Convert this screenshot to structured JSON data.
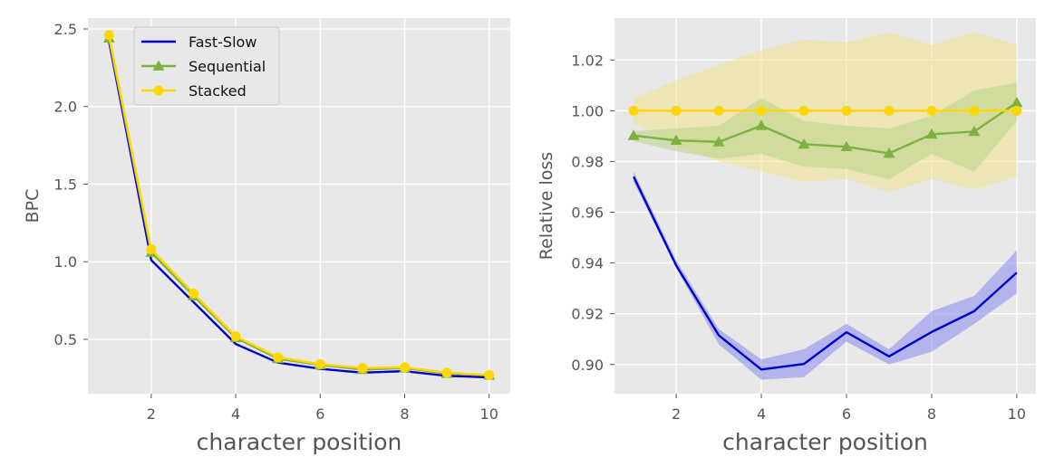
{
  "chart_data": [
    {
      "type": "line",
      "xlabel": "character position",
      "ylabel": "BPC",
      "xlim": [
        0.5,
        10.5
      ],
      "ylim": [
        0.15,
        2.57
      ],
      "xticks": [
        2,
        4,
        6,
        8,
        10
      ],
      "xtick_labels": [
        "2",
        "4",
        "6",
        "8",
        "10"
      ],
      "yticks": [
        0.5,
        1.0,
        1.5,
        2.0,
        2.5
      ],
      "ytick_labels": [
        "0.5",
        "1.0",
        "1.5",
        "2.0",
        "2.5"
      ],
      "grid": true,
      "legend_position": "top-center",
      "x": [
        1,
        2,
        3,
        4,
        5,
        6,
        7,
        8,
        9,
        10
      ],
      "series": [
        {
          "name": "Fast-Slow",
          "color": "#0000cc",
          "marker": "none",
          "values": [
            2.42,
            1.01,
            0.74,
            0.47,
            0.35,
            0.31,
            0.285,
            0.295,
            0.265,
            0.255
          ]
        },
        {
          "name": "Sequential",
          "color": "#7fb13f",
          "marker": "triangle",
          "values": [
            2.44,
            1.06,
            0.78,
            0.51,
            0.375,
            0.335,
            0.305,
            0.315,
            0.28,
            0.268
          ]
        },
        {
          "name": "Stacked",
          "color": "#ffd700",
          "marker": "circle",
          "values": [
            2.46,
            1.08,
            0.795,
            0.52,
            0.385,
            0.34,
            0.315,
            0.32,
            0.285,
            0.27
          ]
        }
      ]
    },
    {
      "type": "line",
      "xlabel": "character position",
      "ylabel": "Relative loss",
      "xlim": [
        0.55,
        10.45
      ],
      "ylim": [
        0.8885,
        1.0365
      ],
      "xticks": [
        2,
        4,
        6,
        8,
        10
      ],
      "xtick_labels": [
        "2",
        "4",
        "6",
        "8",
        "10"
      ],
      "yticks": [
        0.9,
        0.92,
        0.94,
        0.96,
        0.98,
        1.0,
        1.02
      ],
      "ytick_labels": [
        "0.90",
        "0.92",
        "0.94",
        "0.96",
        "0.98",
        "1.00",
        "1.02"
      ],
      "grid": true,
      "x": [
        1,
        2,
        3,
        4,
        5,
        6,
        7,
        8,
        9,
        10
      ],
      "series": [
        {
          "name": "Fast-Slow",
          "color": "#0000cc",
          "band_color": "#8888ee",
          "marker": "none",
          "values": [
            0.974,
            0.939,
            0.9115,
            0.898,
            0.9002,
            0.9127,
            0.9032,
            0.9128,
            0.921,
            0.9362
          ],
          "lower": [
            0.972,
            0.938,
            0.908,
            0.894,
            0.895,
            0.909,
            0.9,
            0.905,
            0.916,
            0.928
          ],
          "upper": [
            0.976,
            0.941,
            0.914,
            0.902,
            0.906,
            0.916,
            0.906,
            0.921,
            0.927,
            0.945
          ]
        },
        {
          "name": "Sequential",
          "color": "#7fb13f",
          "band_color": "#b8d38a",
          "marker": "triangle",
          "values": [
            0.9902,
            0.9883,
            0.9877,
            0.9941,
            0.9868,
            0.9858,
            0.9832,
            0.9907,
            0.9918,
            1.0032
          ],
          "lower": [
            0.988,
            0.984,
            0.981,
            0.983,
            0.978,
            0.977,
            0.973,
            0.983,
            0.976,
            0.996
          ],
          "upper": [
            0.992,
            0.993,
            0.994,
            1.005,
            0.996,
            0.994,
            0.993,
            0.998,
            1.008,
            1.011
          ]
        },
        {
          "name": "Stacked",
          "color": "#ffd700",
          "band_color": "#f0e28a",
          "marker": "circle",
          "values": [
            1.0,
            1.0,
            1.0,
            1.0,
            1.0,
            1.0,
            1.0,
            1.0,
            1.0,
            1.0
          ],
          "lower": [
            0.995,
            0.986,
            0.98,
            0.976,
            0.972,
            0.973,
            0.968,
            0.973,
            0.969,
            0.974
          ],
          "upper": [
            1.005,
            1.012,
            1.018,
            1.024,
            1.028,
            1.027,
            1.031,
            1.026,
            1.031,
            1.026
          ]
        }
      ]
    }
  ]
}
